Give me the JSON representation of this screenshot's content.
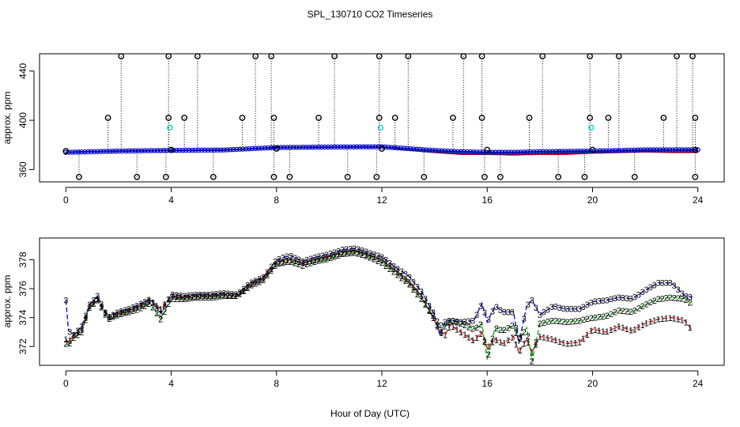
{
  "title": "SPL_130710  CO2 Timeseries",
  "chart_data": [
    {
      "type": "scatter",
      "title": "",
      "xlabel": "",
      "ylabel": "approx. ppm",
      "xlim": [
        -1,
        25
      ],
      "ylim": [
        350,
        454
      ],
      "xticks": [
        0,
        4,
        8,
        12,
        16,
        20,
        24
      ],
      "yticks": [
        360,
        400,
        440
      ],
      "grid": false,
      "high_flags": {
        "value": 452,
        "x": [
          2.1,
          3.9,
          5.0,
          7.2,
          7.8,
          10.2,
          11.9,
          13.0,
          15.1,
          15.8,
          18.1,
          19.9,
          21.0,
          23.2,
          23.8
        ]
      },
      "low_flags": {
        "value": 354,
        "x": [
          0.5,
          2.7,
          3.8,
          5.6,
          7.9,
          8.5,
          10.7,
          11.8,
          13.6,
          15.9,
          16.5,
          18.7,
          19.7,
          21.6,
          23.9
        ]
      },
      "mid_flags": {
        "value": 402,
        "x": [
          1.6,
          3.9,
          4.5,
          6.7,
          7.9,
          9.6,
          11.9,
          12.5,
          14.7,
          15.8,
          17.6,
          19.9,
          20.6,
          22.7,
          23.9
        ]
      },
      "cyan_points": [
        {
          "x": 3.95,
          "y": 394
        },
        {
          "x": 11.95,
          "y": 394
        },
        {
          "x": 19.95,
          "y": 394
        }
      ],
      "hour_points": {
        "x": [
          0,
          4,
          8,
          12,
          16,
          20,
          23.9
        ],
        "y": [
          375,
          376,
          377,
          377,
          376,
          376,
          376
        ]
      },
      "series": [
        {
          "label": "1",
          "color": "#dd0000",
          "x": [
            0,
            2,
            4,
            6,
            8,
            10,
            12,
            13,
            14,
            15,
            16,
            17,
            18,
            19,
            20,
            21,
            22,
            23,
            24
          ],
          "y": [
            374,
            375,
            375.5,
            375.8,
            377.8,
            378.2,
            378.4,
            376,
            374,
            372.5,
            372.5,
            372,
            372.5,
            372.5,
            373.5,
            374,
            374.5,
            374,
            374
          ]
        },
        {
          "label": "2",
          "color": "#00aa00",
          "x": [
            0,
            2,
            4,
            6,
            8,
            10,
            12,
            13,
            14,
            15,
            16,
            17,
            18,
            19,
            20,
            21,
            22,
            23,
            24
          ],
          "y": [
            374,
            375,
            375.5,
            375.8,
            377.8,
            378.2,
            378.4,
            376.5,
            375,
            374,
            373.5,
            373.5,
            374,
            374,
            374.5,
            375,
            375.5,
            375.5,
            375.5
          ]
        },
        {
          "label": "3",
          "color": "#0000cc",
          "x": [
            0,
            2,
            4,
            6,
            8,
            10,
            12,
            13,
            14,
            15,
            16,
            17,
            18,
            19,
            20,
            21,
            22,
            23,
            24
          ],
          "y": [
            374,
            375,
            375.6,
            375.9,
            377.9,
            378.3,
            378.5,
            377,
            375.5,
            374.5,
            374,
            374,
            374.5,
            374.8,
            375,
            375.5,
            376,
            376,
            376
          ]
        }
      ]
    },
    {
      "type": "line",
      "title": "",
      "xlabel": "Hour of Day (UTC)",
      "ylabel": "approx. ppm",
      "xlim": [
        -1,
        25
      ],
      "ylim": [
        370.7,
        379.5
      ],
      "xticks": [
        0,
        4,
        8,
        12,
        16,
        20,
        24
      ],
      "yticks": [
        372,
        374,
        376,
        378
      ],
      "grid": false,
      "marker_interval_hours": 0.15,
      "series": [
        {
          "label": "1",
          "color": "#dd0000",
          "x": [
            0,
            0.1,
            0.3,
            0.6,
            0.9,
            1.2,
            1.6,
            2.0,
            2.4,
            2.8,
            3.2,
            3.6,
            4.0,
            4.5,
            5.0,
            5.5,
            6.0,
            6.5,
            7.0,
            7.5,
            8.0,
            8.5,
            9.0,
            9.5,
            10.0,
            10.5,
            11.0,
            11.5,
            12.0,
            12.5,
            13.0,
            13.5,
            14.0,
            14.2,
            14.4,
            14.6,
            15.0,
            15.5,
            15.8,
            16.0,
            16.3,
            16.6,
            17.0,
            17.2,
            17.5,
            17.7,
            18.0,
            18.5,
            19.0,
            19.5,
            20.0,
            20.5,
            21.0,
            21.5,
            22.0,
            22.5,
            23.0,
            23.5,
            23.8
          ],
          "y": [
            372.5,
            372.3,
            372.8,
            373.2,
            374.8,
            375.3,
            374.0,
            374.3,
            374.5,
            374.8,
            375.2,
            374.6,
            375.5,
            375.4,
            375.5,
            375.5,
            375.6,
            375.5,
            376.3,
            376.7,
            377.8,
            378.0,
            377.8,
            378.0,
            378.2,
            378.5,
            378.6,
            378.3,
            378.0,
            377.3,
            376.5,
            375.5,
            373.8,
            373.0,
            372.8,
            373.5,
            373.0,
            372.4,
            373.0,
            371.9,
            372.5,
            372.2,
            372.7,
            371.6,
            372.5,
            371.6,
            372.7,
            372.5,
            372.2,
            372.3,
            373.2,
            373.0,
            373.4,
            373.1,
            373.6,
            373.9,
            374.0,
            373.8,
            373.1
          ]
        },
        {
          "label": "2",
          "color": "#00aa00",
          "x": [
            0,
            0.1,
            0.3,
            0.6,
            0.9,
            1.2,
            1.6,
            2.0,
            2.4,
            2.8,
            3.2,
            3.6,
            4.0,
            4.5,
            5.0,
            5.5,
            6.0,
            6.5,
            7.0,
            7.5,
            8.0,
            8.5,
            9.0,
            9.5,
            10.0,
            10.5,
            11.0,
            11.5,
            12.0,
            12.5,
            13.0,
            13.5,
            14.0,
            14.2,
            14.4,
            14.6,
            15.0,
            15.5,
            15.8,
            16.0,
            16.3,
            16.6,
            17.0,
            17.2,
            17.5,
            17.7,
            18.0,
            18.5,
            19.0,
            19.5,
            20.0,
            20.5,
            21.0,
            21.5,
            22.0,
            22.5,
            23.0,
            23.5,
            23.8
          ],
          "y": [
            372.2,
            372.1,
            372.6,
            373.0,
            374.7,
            375.2,
            373.9,
            374.2,
            374.4,
            374.6,
            375.0,
            373.9,
            375.3,
            375.3,
            375.4,
            375.4,
            375.5,
            375.5,
            376.2,
            376.6,
            377.7,
            377.9,
            377.6,
            377.9,
            378.1,
            378.4,
            378.5,
            378.2,
            377.8,
            377.1,
            376.4,
            375.3,
            374.0,
            373.5,
            373.4,
            373.8,
            373.6,
            373.2,
            373.6,
            371.1,
            373.3,
            373.1,
            373.5,
            372.4,
            373.3,
            371.0,
            373.6,
            373.8,
            373.7,
            373.8,
            374.0,
            374.1,
            374.5,
            374.4,
            374.9,
            375.3,
            375.4,
            375.3,
            374.9
          ]
        },
        {
          "label": "3",
          "color": "#0000cc",
          "x": [
            0,
            0.1,
            0.3,
            0.6,
            0.9,
            1.2,
            1.6,
            2.0,
            2.4,
            2.8,
            3.2,
            3.6,
            4.0,
            4.5,
            5.0,
            5.5,
            6.0,
            6.5,
            7.0,
            7.5,
            8.0,
            8.5,
            9.0,
            9.5,
            10.0,
            10.5,
            11.0,
            11.5,
            12.0,
            12.5,
            13.0,
            13.5,
            14.0,
            14.2,
            14.4,
            14.6,
            15.0,
            15.5,
            15.8,
            16.0,
            16.3,
            16.6,
            17.0,
            17.2,
            17.5,
            17.7,
            18.0,
            18.5,
            19.0,
            19.5,
            20.0,
            20.5,
            21.0,
            21.5,
            22.0,
            22.5,
            23.0,
            23.5,
            23.8
          ],
          "y": [
            375.2,
            373.1,
            372.8,
            373.4,
            374.9,
            375.5,
            374.0,
            374.4,
            374.6,
            374.9,
            375.3,
            374.3,
            375.6,
            375.5,
            375.6,
            375.6,
            375.7,
            375.6,
            376.4,
            376.8,
            378.0,
            378.3,
            377.9,
            378.2,
            378.4,
            378.7,
            378.8,
            378.5,
            378.2,
            377.5,
            376.9,
            375.8,
            374.2,
            372.8,
            373.7,
            373.8,
            373.7,
            373.8,
            375.0,
            373.7,
            374.8,
            374.4,
            374.4,
            372.2,
            374.8,
            375.2,
            374.2,
            374.8,
            374.6,
            374.6,
            375.1,
            375.2,
            375.4,
            375.3,
            375.9,
            376.4,
            376.4,
            375.5,
            375.4
          ]
        }
      ]
    }
  ]
}
